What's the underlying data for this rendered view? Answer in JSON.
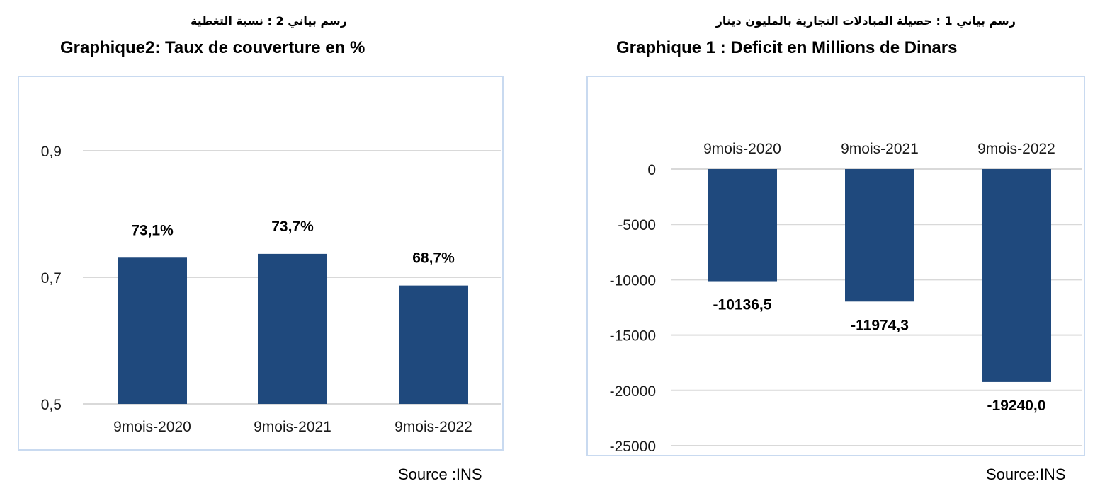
{
  "charts": {
    "left": {
      "title_ar": "رسم بياني 2 : نسبة التغطية",
      "title_fr": "Graphique2: Taux de couverture en %",
      "source": "Source :INS"
    },
    "right": {
      "title_ar": "رسم بياني 1 : حصيلة المبادلات التجارية بالمليون دينار",
      "title_fr": "Graphique 1 : Deficit en Millions de Dinars",
      "source": "Source:INS"
    }
  },
  "colors": {
    "bar": "#1f497d",
    "grid": "#d9d9d9",
    "border": "#c9daf0"
  },
  "chart_data": [
    {
      "type": "bar",
      "title": "Graphique2: Taux de couverture en %",
      "categories": [
        "9mois-2020",
        "9mois-2021",
        "9mois-2022"
      ],
      "values": [
        0.731,
        0.737,
        0.687
      ],
      "data_labels": [
        "73,1%",
        "73,7%",
        "68,7%"
      ],
      "ylim": [
        0.5,
        0.9
      ],
      "yticks": [
        0.5,
        0.7,
        0.9
      ],
      "ytick_labels": [
        "0,5",
        "0,7",
        "0,9"
      ],
      "grid": true
    },
    {
      "type": "bar",
      "title": "Graphique 1 : Deficit en Millions de Dinars",
      "categories": [
        "9mois-2020",
        "9mois-2021",
        "9mois-2022"
      ],
      "values": [
        -10136.5,
        -11974.3,
        -19240.0
      ],
      "data_labels": [
        "-10136,5",
        "-11974,3",
        "-19240,0"
      ],
      "ylim": [
        -25000,
        0
      ],
      "yticks": [
        0,
        -5000,
        -10000,
        -15000,
        -20000,
        -25000
      ],
      "ytick_labels": [
        "0",
        "-5000",
        "-10000",
        "-15000",
        "-20000",
        "-25000"
      ],
      "category_axis_position": "top",
      "grid": true
    }
  ]
}
